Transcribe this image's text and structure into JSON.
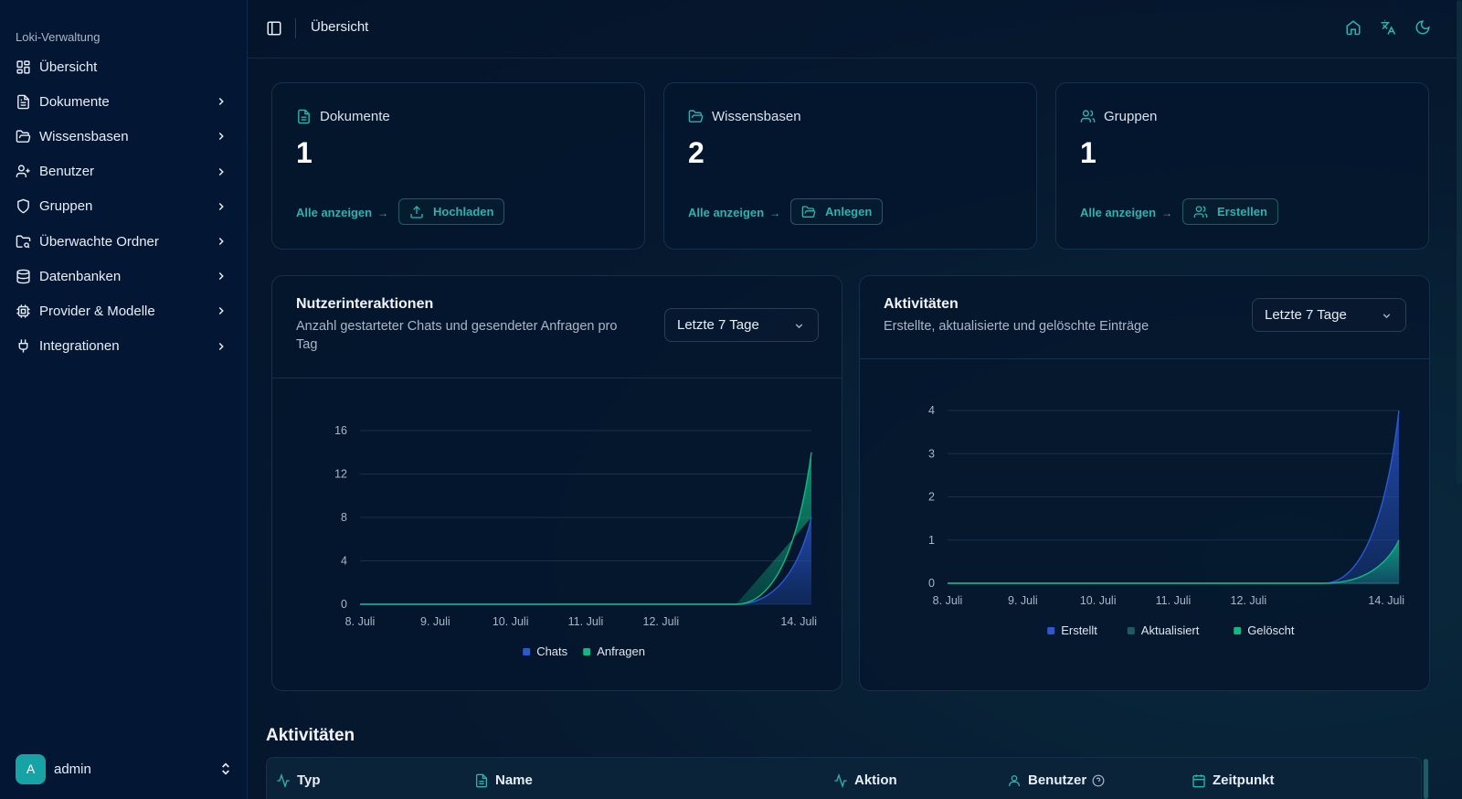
{
  "sidebar": {
    "app_name": "Loki-Verwaltung",
    "items": [
      {
        "label": "Übersicht",
        "icon": "grid-icon"
      },
      {
        "label": "Dokumente",
        "icon": "document-icon"
      },
      {
        "label": "Wissensbasen",
        "icon": "folder-icon"
      },
      {
        "label": "Benutzer",
        "icon": "user-plus-icon"
      },
      {
        "label": "Gruppen",
        "icon": "shield-icon"
      },
      {
        "label": "Überwachte Ordner",
        "icon": "folder-search-icon"
      },
      {
        "label": "Datenbanken",
        "icon": "database-icon"
      },
      {
        "label": "Provider & Modelle",
        "icon": "cpu-icon"
      },
      {
        "label": "Integrationen",
        "icon": "plug-icon"
      }
    ],
    "user": {
      "initial": "A",
      "name": "admin"
    }
  },
  "topbar": {
    "title": "Übersicht"
  },
  "stats": [
    {
      "title": "Dokumente",
      "value": "1",
      "link": "Alle anzeigen",
      "button": "Hochladen"
    },
    {
      "title": "Wissensbasen",
      "value": "2",
      "link": "Alle anzeigen",
      "button": "Anlegen"
    },
    {
      "title": "Gruppen",
      "value": "1",
      "link": "Alle anzeigen",
      "button": "Erstellen"
    }
  ],
  "interactions": {
    "title": "Nutzerinteraktionen",
    "subtitle_line1": "Anzahl gestarteter Chats und gesendeter Anfragen pro",
    "subtitle_line2": "Tag",
    "range": "Letzte 7 Tage"
  },
  "activities_chart": {
    "title": "Aktivitäten",
    "subtitle": "Erstellte, aktualisierte und gelöschte Einträge",
    "range": "Letzte 7 Tage"
  },
  "chart_data": [
    {
      "type": "area",
      "title": "Nutzerinteraktionen",
      "x": [
        "8. Juli",
        "9. Juli",
        "10. Juli",
        "11. Juli",
        "12. Juli",
        "13. Juli",
        "14. Juli"
      ],
      "x_tick_labels": [
        "8. Juli",
        "9. Juli",
        "10. Juli",
        "11. Juli",
        "12. Juli",
        "14. Juli"
      ],
      "y_ticks": [
        0,
        4,
        8,
        12,
        16
      ],
      "ylim": [
        0,
        16
      ],
      "stacked": true,
      "series": [
        {
          "name": "Chats",
          "values": [
            0,
            0,
            0,
            0,
            0,
            0,
            8
          ],
          "color": "#2b59d6"
        },
        {
          "name": "Anfragen",
          "values": [
            0,
            0,
            0,
            0,
            0,
            0,
            6
          ],
          "color": "#10b981"
        }
      ],
      "legend": "bottom",
      "grid": true
    },
    {
      "type": "area",
      "title": "Aktivitäten",
      "x": [
        "8. Juli",
        "9. Juli",
        "10. Juli",
        "11. Juli",
        "12. Juli",
        "13. Juli",
        "14. Juli"
      ],
      "x_tick_labels": [
        "8. Juli",
        "9. Juli",
        "10. Juli",
        "11. Juli",
        "12. Juli",
        "14. Juli"
      ],
      "y_ticks": [
        0,
        1,
        2,
        3,
        4
      ],
      "ylim": [
        0,
        4
      ],
      "stacked": false,
      "series": [
        {
          "name": "Erstellt",
          "values": [
            0,
            0,
            0,
            0,
            0,
            0,
            4
          ],
          "color": "#2b59d6"
        },
        {
          "name": "Aktualisiert",
          "values": [
            0,
            0,
            0,
            0,
            0,
            0,
            0
          ],
          "color": "#1d5a66"
        },
        {
          "name": "Gelöscht",
          "values": [
            0,
            0,
            0,
            0,
            0,
            0,
            1
          ],
          "color": "#10b981"
        }
      ],
      "legend": "bottom",
      "grid": true
    }
  ],
  "activity_section": {
    "title": "Aktivitäten",
    "columns": [
      {
        "label": "Typ",
        "icon": "activity-icon"
      },
      {
        "label": "Name",
        "icon": "document-icon"
      },
      {
        "label": "Aktion",
        "icon": "activity-icon"
      },
      {
        "label": "Benutzer",
        "icon": "user-icon"
      },
      {
        "label": "Zeitpunkt",
        "icon": "calendar-icon"
      }
    ]
  }
}
